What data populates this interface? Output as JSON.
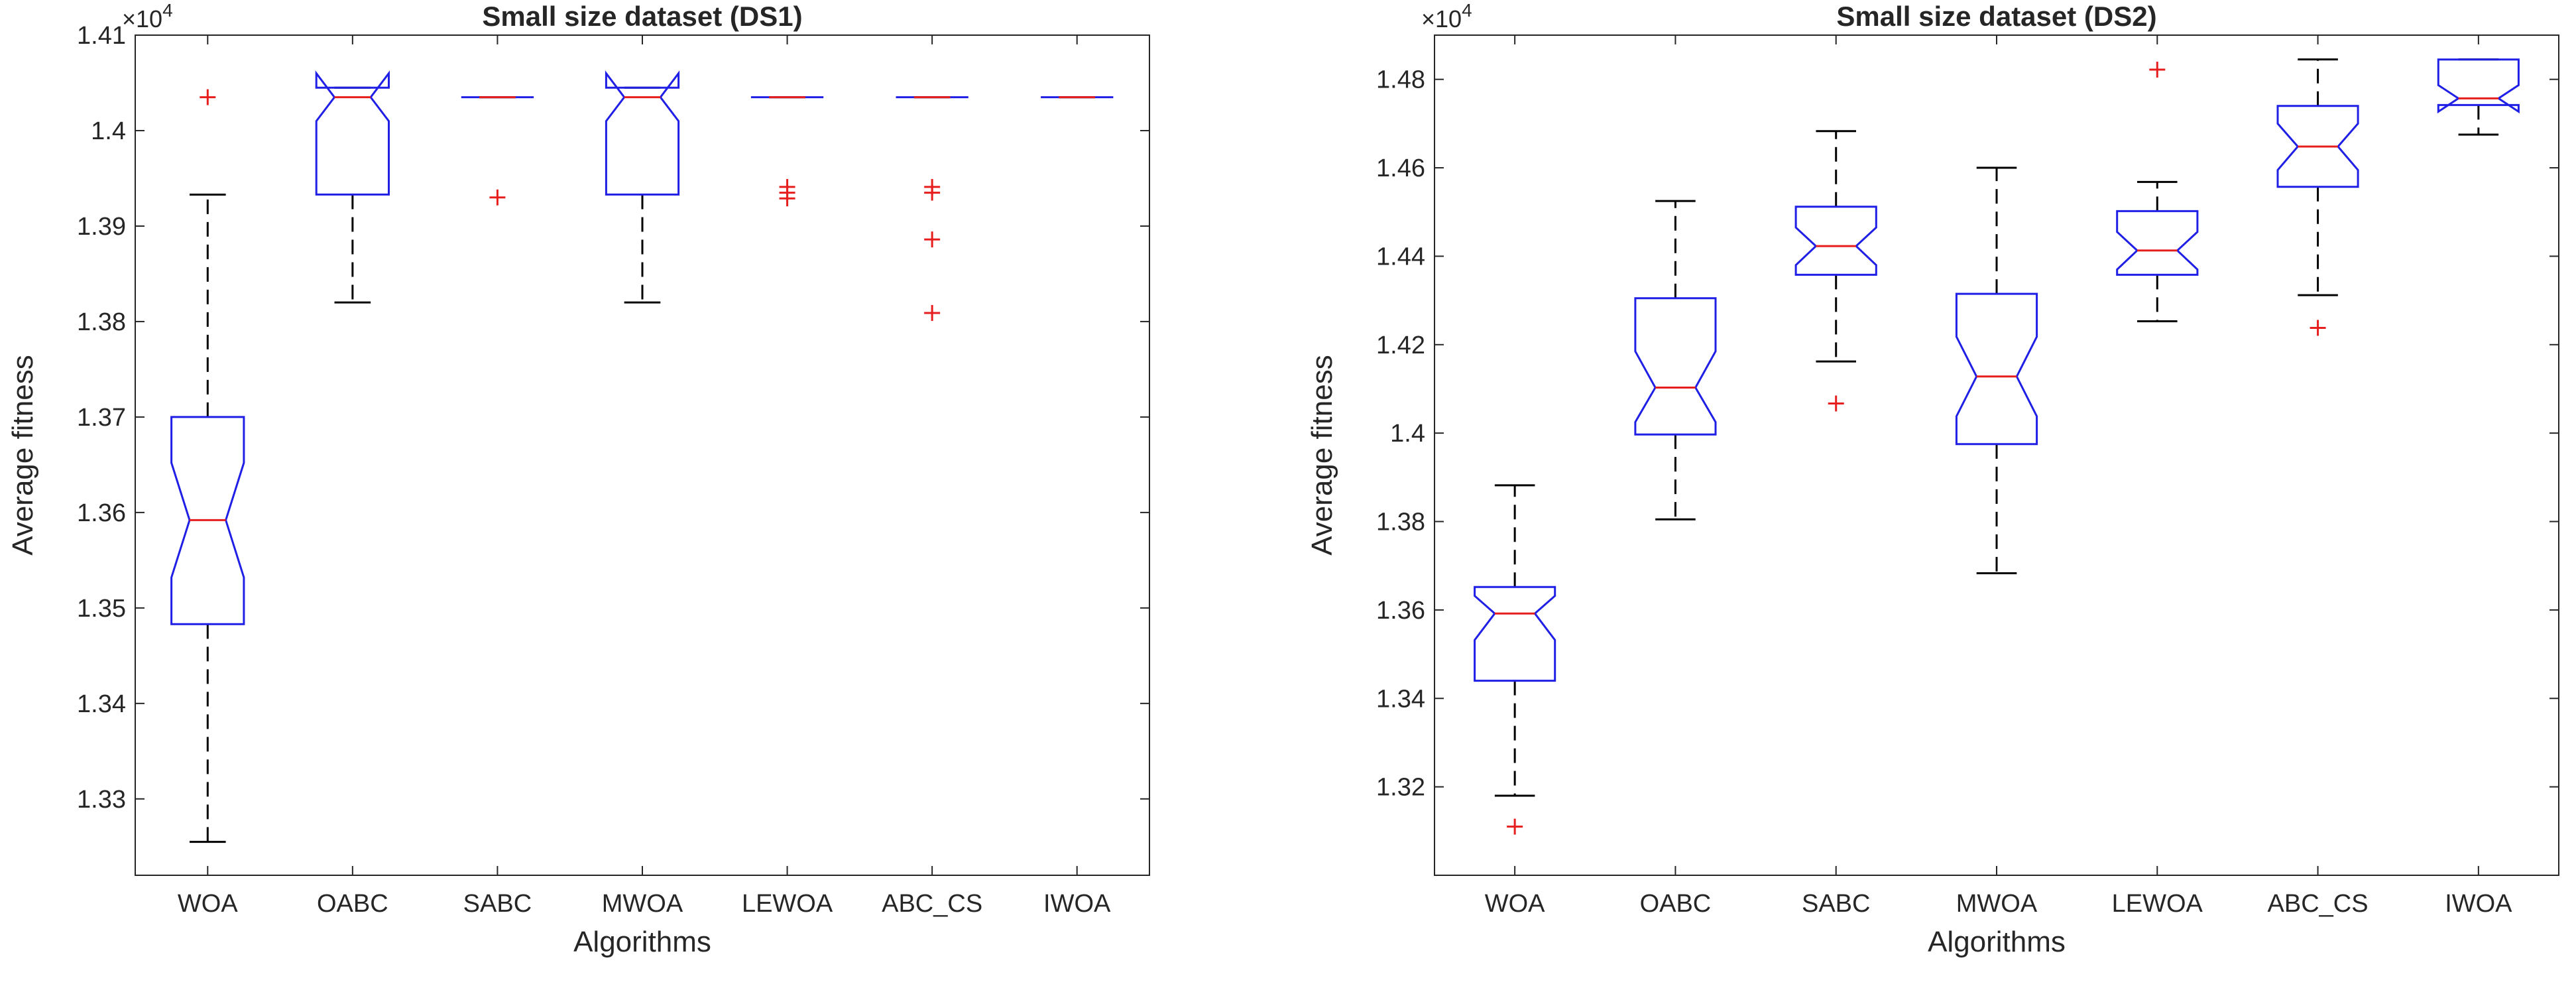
{
  "chart_data": [
    {
      "type": "boxplot",
      "title": "Small size dataset (DS1)",
      "xlabel": "Algorithms",
      "ylabel": "Average fitness",
      "exponent_label": "×10",
      "exponent_power": "4",
      "ylim": [
        1.322,
        1.41
      ],
      "yticks": [
        1.33,
        1.34,
        1.35,
        1.36,
        1.37,
        1.38,
        1.39,
        1.4,
        1.41
      ],
      "ytick_labels": [
        "1.33",
        "1.34",
        "1.35",
        "1.36",
        "1.37",
        "1.38",
        "1.39",
        "1.4",
        "1.41"
      ],
      "categories": [
        "WOA",
        "OABC",
        "SABC",
        "MWOA",
        "LEWOA",
        "ABC_CS",
        "IWOA"
      ],
      "boxes": [
        {
          "name": "WOA",
          "whisker_low": 1.3255,
          "q1": 1.3483,
          "median": 1.3592,
          "q3": 1.37,
          "whisker_high": 1.3933,
          "notch_low": 1.3532,
          "notch_high": 1.3652,
          "outliers": [
            1.4035
          ]
        },
        {
          "name": "OABC",
          "whisker_low": 1.382,
          "q1": 1.3933,
          "median": 1.4035,
          "q3": 1.4045,
          "whisker_high": 1.4045,
          "notch_low": 1.401,
          "notch_high": 1.406,
          "outliers": []
        },
        {
          "name": "SABC",
          "whisker_low": 1.4035,
          "q1": 1.4035,
          "median": 1.4035,
          "q3": 1.4035,
          "whisker_high": 1.4035,
          "notch_low": 1.4035,
          "notch_high": 1.4035,
          "outliers": [
            1.393
          ]
        },
        {
          "name": "MWOA",
          "whisker_low": 1.382,
          "q1": 1.3933,
          "median": 1.4035,
          "q3": 1.4045,
          "whisker_high": 1.4045,
          "notch_low": 1.401,
          "notch_high": 1.406,
          "outliers": []
        },
        {
          "name": "LEWOA",
          "whisker_low": 1.4035,
          "q1": 1.4035,
          "median": 1.4035,
          "q3": 1.4035,
          "whisker_high": 1.4035,
          "notch_low": 1.4035,
          "notch_high": 1.4035,
          "outliers": [
            1.3941,
            1.3935,
            1.3929
          ]
        },
        {
          "name": "ABC_CS",
          "whisker_low": 1.4035,
          "q1": 1.4035,
          "median": 1.4035,
          "q3": 1.4035,
          "whisker_high": 1.4035,
          "notch_low": 1.4035,
          "notch_high": 1.4035,
          "outliers": [
            1.3941,
            1.3935,
            1.3886,
            1.3809
          ]
        },
        {
          "name": "IWOA",
          "whisker_low": 1.4035,
          "q1": 1.4035,
          "median": 1.4035,
          "q3": 1.4035,
          "whisker_high": 1.4035,
          "notch_low": 1.4035,
          "notch_high": 1.4035,
          "outliers": []
        }
      ]
    },
    {
      "type": "boxplot",
      "title": "Small size dataset (DS2)",
      "xlabel": "Algorithms",
      "ylabel": "Average fitness",
      "exponent_label": "×10",
      "exponent_power": "4",
      "ylim": [
        1.3,
        1.49
      ],
      "yticks": [
        1.32,
        1.34,
        1.36,
        1.38,
        1.4,
        1.42,
        1.44,
        1.46,
        1.48
      ],
      "ytick_labels": [
        "1.32",
        "1.34",
        "1.36",
        "1.38",
        "1.4",
        "1.42",
        "1.44",
        "1.46",
        "1.48"
      ],
      "categories": [
        "WOA",
        "OABC",
        "SABC",
        "MWOA",
        "LEWOA",
        "ABC_CS",
        "IWOA"
      ],
      "boxes": [
        {
          "name": "WOA",
          "whisker_low": 1.318,
          "q1": 1.344,
          "median": 1.3592,
          "q3": 1.3652,
          "whisker_high": 1.3882,
          "notch_low": 1.3532,
          "notch_high": 1.3632,
          "outliers": [
            1.311
          ]
        },
        {
          "name": "OABC",
          "whisker_low": 1.3805,
          "q1": 1.3997,
          "median": 1.4103,
          "q3": 1.4305,
          "whisker_high": 1.4525,
          "notch_low": 1.4025,
          "notch_high": 1.4185,
          "outliers": []
        },
        {
          "name": "SABC",
          "whisker_low": 1.4162,
          "q1": 1.4358,
          "median": 1.4423,
          "q3": 1.4512,
          "whisker_high": 1.4683,
          "notch_low": 1.438,
          "notch_high": 1.4465,
          "outliers": [
            1.4067
          ]
        },
        {
          "name": "MWOA",
          "whisker_low": 1.3683,
          "q1": 1.3975,
          "median": 1.4128,
          "q3": 1.4315,
          "whisker_high": 1.46,
          "notch_low": 1.4038,
          "notch_high": 1.4218,
          "outliers": []
        },
        {
          "name": "LEWOA",
          "whisker_low": 1.4253,
          "q1": 1.4358,
          "median": 1.4413,
          "q3": 1.4502,
          "whisker_high": 1.4568,
          "notch_low": 1.437,
          "notch_high": 1.4455,
          "outliers": [
            1.4822
          ]
        },
        {
          "name": "ABC_CS",
          "whisker_low": 1.4312,
          "q1": 1.4557,
          "median": 1.4648,
          "q3": 1.474,
          "whisker_high": 1.4845,
          "notch_low": 1.4595,
          "notch_high": 1.47,
          "outliers": [
            1.4238
          ]
        },
        {
          "name": "IWOA",
          "whisker_low": 1.4675,
          "q1": 1.4742,
          "median": 1.4757,
          "q3": 1.4845,
          "whisker_high": 1.4845,
          "notch_low": 1.4727,
          "notch_high": 1.4787,
          "outliers": []
        }
      ]
    }
  ]
}
